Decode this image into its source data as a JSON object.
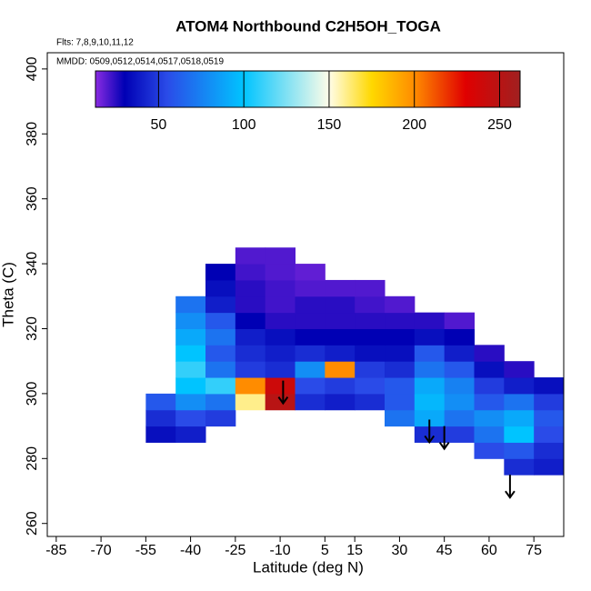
{
  "chart_data": {
    "type": "heatmap",
    "title": "ATOM4 Northbound C2H5OH_TOGA",
    "subtitle": "Flts: 7,8,9,10,11,12",
    "annotation": "MMDD: 0509,0512,0514,0517,0518,0519",
    "xlabel": "Latitude (deg N)",
    "ylabel": "Theta (C)",
    "xlim": [
      -88,
      85
    ],
    "ylim": [
      256,
      405
    ],
    "xticks": [
      -85,
      -70,
      -55,
      -40,
      -25,
      -10,
      5,
      15,
      30,
      45,
      60,
      75
    ],
    "yticks": [
      260,
      280,
      300,
      320,
      340,
      360,
      380,
      400
    ],
    "x_edges": [
      -55,
      -45,
      -35,
      -25,
      -15,
      -5,
      5,
      15,
      25,
      35,
      45,
      55,
      65,
      75,
      85
    ],
    "y_edges": [
      275,
      280,
      285,
      290,
      295,
      300,
      305,
      310,
      315,
      320,
      325,
      330,
      335,
      340,
      345
    ],
    "z": [
      [
        null,
        null,
        null,
        null,
        null,
        null,
        null,
        null,
        null,
        null,
        null,
        null,
        45,
        40
      ],
      [
        null,
        null,
        null,
        null,
        null,
        null,
        null,
        null,
        null,
        null,
        null,
        55,
        60,
        45
      ],
      [
        35,
        40,
        null,
        null,
        null,
        null,
        null,
        null,
        null,
        45,
        50,
        70,
        100,
        55
      ],
      [
        45,
        55,
        50,
        null,
        null,
        null,
        null,
        null,
        70,
        90,
        70,
        80,
        90,
        60
      ],
      [
        60,
        80,
        70,
        160,
        250,
        45,
        40,
        45,
        60,
        95,
        80,
        60,
        70,
        50
      ],
      [
        null,
        100,
        110,
        200,
        240,
        55,
        50,
        55,
        60,
        90,
        75,
        50,
        40,
        35
      ],
      [
        null,
        110,
        70,
        50,
        45,
        80,
        200,
        50,
        45,
        70,
        60,
        35,
        25,
        null
      ],
      [
        null,
        100,
        60,
        45,
        40,
        45,
        40,
        35,
        35,
        60,
        40,
        25,
        null,
        null
      ],
      [
        null,
        90,
        70,
        40,
        35,
        30,
        30,
        30,
        30,
        35,
        30,
        null,
        null,
        null
      ],
      [
        null,
        80,
        60,
        30,
        25,
        25,
        25,
        25,
        25,
        25,
        20,
        null,
        null,
        null
      ],
      [
        null,
        70,
        40,
        25,
        22,
        25,
        25,
        22,
        20,
        null,
        null,
        null,
        null,
        null
      ],
      [
        null,
        null,
        35,
        25,
        22,
        20,
        20,
        20,
        null,
        null,
        null,
        null,
        null,
        null
      ],
      [
        null,
        null,
        30,
        22,
        20,
        18,
        null,
        null,
        null,
        null,
        null,
        null,
        null,
        null
      ],
      [
        null,
        null,
        null,
        20,
        20,
        null,
        null,
        null,
        null,
        null,
        null,
        null,
        null,
        null
      ]
    ],
    "colorbar_lim": [
      13,
      262
    ],
    "colorbar_ticks": [
      50,
      100,
      150,
      200,
      250
    ],
    "colorscale": [
      [
        13,
        "#8a2be2"
      ],
      [
        30,
        "#0000b4"
      ],
      [
        55,
        "#2a4be8"
      ],
      [
        100,
        "#00c4ff"
      ],
      [
        150,
        "#fffde8"
      ],
      [
        175,
        "#ffd800"
      ],
      [
        200,
        "#ff8c00"
      ],
      [
        230,
        "#e00000"
      ],
      [
        262,
        "#a02020"
      ]
    ],
    "arrows": [
      {
        "x": -9,
        "y_from": 304,
        "y_to": 297
      },
      {
        "x": 40,
        "y_from": 292,
        "y_to": 285
      },
      {
        "x": 45,
        "y_from": 290,
        "y_to": 283
      },
      {
        "x": 67,
        "y_from": 275,
        "y_to": 268
      }
    ]
  }
}
